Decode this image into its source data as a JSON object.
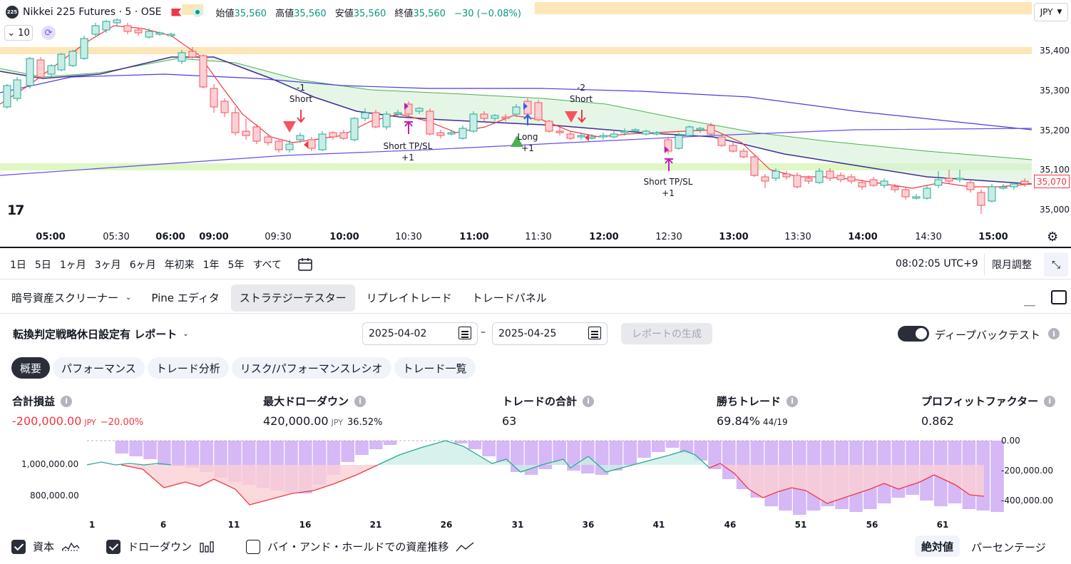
{
  "chart": {
    "symbol_badge": "225",
    "title": "Nikkei 225 Futures · 5 · OSE",
    "ohlc": [
      {
        "label": "始値",
        "value": "35,560"
      },
      {
        "label": "高値",
        "value": "35,560"
      },
      {
        "label": "安値",
        "value": "35,560"
      },
      {
        "label": "終値",
        "value": "35,560"
      }
    ],
    "change": "−30 (−0.08%)",
    "interval_value": "10",
    "currency": "JPY",
    "price_levels": [
      "35,400",
      "35,300",
      "35,200",
      "35,100",
      "35,000"
    ],
    "last_price": "35,070",
    "time_labels": [
      {
        "t": "05:00",
        "bold": true
      },
      {
        "t": "05:30",
        "bold": false
      },
      {
        "t": "06:00",
        "bold": true
      },
      {
        "t": "09:00",
        "bold": true
      },
      {
        "t": "09:30",
        "bold": false
      },
      {
        "t": "10:00",
        "bold": true
      },
      {
        "t": "10:30",
        "bold": false
      },
      {
        "t": "11:00",
        "bold": true
      },
      {
        "t": "11:30",
        "bold": false
      },
      {
        "t": "12:00",
        "bold": true
      },
      {
        "t": "12:30",
        "bold": false
      },
      {
        "t": "13:00",
        "bold": true
      },
      {
        "t": "13:30",
        "bold": false
      },
      {
        "t": "14:00",
        "bold": true
      },
      {
        "t": "14:30",
        "bold": false
      },
      {
        "t": "15:00",
        "bold": true
      }
    ],
    "annotations": [
      {
        "lines": [
          "-1",
          "Short"
        ]
      },
      {
        "lines": [
          "Short TP/SL",
          "+1"
        ]
      },
      {
        "lines": [
          "Long",
          "+1"
        ]
      },
      {
        "lines": [
          "-2",
          "Short"
        ]
      },
      {
        "lines": [
          "Short TP/SL",
          "+1"
        ]
      }
    ],
    "logo": "17"
  },
  "range_bar": {
    "ranges": [
      "1日",
      "5日",
      "1ヶ月",
      "3ヶ月",
      "6ヶ月",
      "年初来",
      "1年",
      "5年",
      "すべて"
    ],
    "clock": "08:02:05 UTC+9",
    "adjust": "限月調整"
  },
  "panel_tabs": [
    {
      "label": "暗号資産スクリーナー",
      "chevron": true,
      "active": false
    },
    {
      "label": "Pine エディタ",
      "chevron": false,
      "active": false
    },
    {
      "label": "ストラテジーテスター",
      "chevron": false,
      "active": true
    },
    {
      "label": "リプレイトレード",
      "chevron": false,
      "active": false
    },
    {
      "label": "トレードパネル",
      "chevron": false,
      "active": false
    }
  ],
  "report": {
    "title": "転換判定戦略休日設定有 レポート",
    "date_from": "2025-04-02",
    "date_to": "2025-04-25",
    "generate": "レポートの生成",
    "deep_backtest": "ディープバックテスト"
  },
  "sub_tabs": [
    {
      "label": "概要",
      "active": true
    },
    {
      "label": "パフォーマンス",
      "active": false
    },
    {
      "label": "トレード分析",
      "active": false
    },
    {
      "label": "リスク/パフォーマンスレシオ",
      "active": false
    },
    {
      "label": "トレード一覧",
      "active": false
    }
  ],
  "metrics": {
    "pnl": {
      "title": "合計損益",
      "value": "-200,000.00",
      "unit": "JPY",
      "pct": "−20.00%"
    },
    "drawdown": {
      "title": "最大ドローダウン",
      "value": "420,000.00",
      "unit": "JPY",
      "pct": "36.52%"
    },
    "trades": {
      "title": "トレードの合計",
      "value": "63"
    },
    "win": {
      "title": "勝ちトレード",
      "value": "69.84%",
      "sub": "44/19"
    },
    "pf": {
      "title": "プロフィットファクター",
      "value": "0.862"
    }
  },
  "equity_chart": {
    "left_labels": [
      "1,000,000.00",
      "800,000.00"
    ],
    "right_labels": [
      "0.00",
      "-200,000.00",
      "-400,000.00"
    ],
    "x_labels": [
      "1",
      "6",
      "11",
      "16",
      "21",
      "26",
      "31",
      "36",
      "41",
      "46",
      "51",
      "56",
      "61"
    ],
    "colors": {
      "equity_up": "#22ab94",
      "equity_down": "#f23645",
      "drawdown": "#d5b8f5"
    }
  },
  "bottom_legend": {
    "equity": "資本",
    "drawdown": "ドローダウン",
    "buy_hold": "バイ・アンド・ホールドでの資産推移",
    "absolute": "絶対値",
    "percent": "パーセンテージ"
  }
}
